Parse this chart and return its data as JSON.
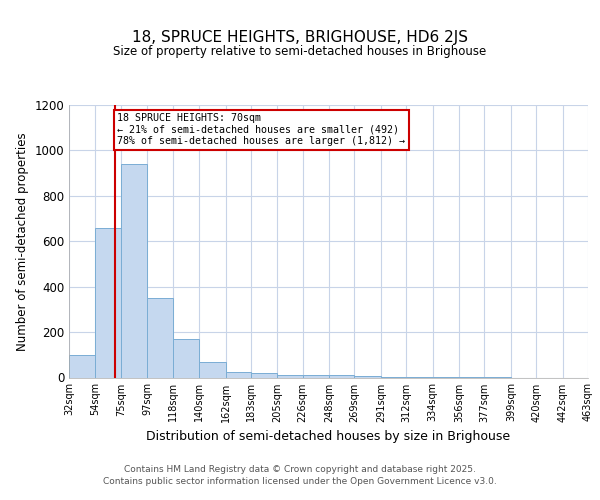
{
  "title1": "18, SPRUCE HEIGHTS, BRIGHOUSE, HD6 2JS",
  "title2": "Size of property relative to semi-detached houses in Brighouse",
  "xlabel": "Distribution of semi-detached houses by size in Brighouse",
  "ylabel": "Number of semi-detached properties",
  "bin_edges": [
    32,
    54,
    75,
    97,
    118,
    140,
    162,
    183,
    205,
    226,
    248,
    269,
    291,
    312,
    334,
    356,
    377,
    399,
    420,
    442,
    463
  ],
  "counts": [
    100,
    660,
    940,
    350,
    170,
    70,
    25,
    20,
    13,
    13,
    13,
    5,
    3,
    3,
    3,
    1,
    1,
    0,
    0,
    0
  ],
  "bar_color": "#C5D8EF",
  "bar_edge_color": "#7AADD4",
  "property_size": 70,
  "property_line_color": "#CC0000",
  "annotation_text": "18 SPRUCE HEIGHTS: 70sqm\n← 21% of semi-detached houses are smaller (492)\n78% of semi-detached houses are larger (1,812) →",
  "annotation_box_color": "#CC0000",
  "ylim": [
    0,
    1200
  ],
  "yticks": [
    0,
    200,
    400,
    600,
    800,
    1000,
    1200
  ],
  "footer1": "Contains HM Land Registry data © Crown copyright and database right 2025.",
  "footer2": "Contains public sector information licensed under the Open Government Licence v3.0.",
  "bg_color": "#FFFFFF",
  "grid_color": "#C8D4E8"
}
